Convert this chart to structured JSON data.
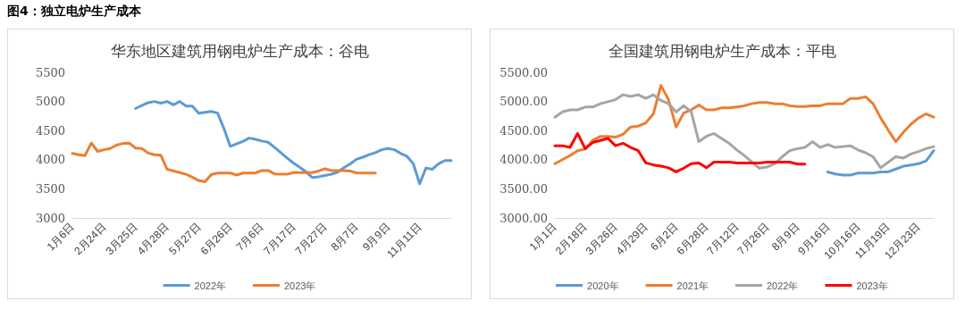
{
  "chart_data": [
    {
      "type": "line",
      "title": "华东地区建筑用钢电炉生产成本：谷电",
      "annotations": [
        "图4：独立电炉生产成本"
      ],
      "categories": [
        "1月6日",
        null,
        null,
        null,
        null,
        "2月24日",
        null,
        null,
        null,
        null,
        "3月25日",
        null,
        null,
        null,
        null,
        "4月28日",
        null,
        null,
        null,
        null,
        "5月27日",
        null,
        null,
        null,
        null,
        "6月26日",
        null,
        null,
        null,
        null,
        "7月6日",
        null,
        null,
        null,
        null,
        "7月17日",
        null,
        null,
        null,
        null,
        "7月27日",
        null,
        null,
        null,
        null,
        "8月7日",
        null,
        null,
        null,
        null,
        "9月9日",
        null,
        null,
        null,
        null,
        "11月11日",
        null,
        null,
        null,
        null,
        null
      ],
      "series": [
        {
          "name": "2022年",
          "color": "#5b9bd5",
          "values": [
            null,
            null,
            null,
            null,
            null,
            null,
            null,
            null,
            null,
            null,
            4879,
            4929,
            4979,
            5000,
            4971,
            5000,
            4943,
            5000,
            4921,
            4921,
            4800,
            4814,
            4829,
            4800,
            4536,
            4229,
            4271,
            4314,
            4371,
            4350,
            4321,
            4300,
            4214,
            4121,
            4029,
            3943,
            3871,
            3793,
            3693,
            3707,
            3729,
            3750,
            3786,
            3864,
            3929,
            4007,
            4043,
            4086,
            4121,
            4171,
            4193,
            4171,
            4107,
            4057,
            3929,
            3586,
            3857,
            3836,
            3929,
            3986,
            3986
          ]
        },
        {
          "name": "2023年",
          "color": "#ed7d31",
          "values": [
            4107,
            4086,
            4071,
            4286,
            4143,
            4171,
            4193,
            4250,
            4279,
            4286,
            4200,
            4193,
            4114,
            4086,
            4079,
            3836,
            3807,
            3779,
            3750,
            3700,
            3643,
            3621,
            3743,
            3771,
            3771,
            3771,
            3736,
            3771,
            3771,
            3771,
            3814,
            3814,
            3757,
            3750,
            3750,
            3779,
            3779,
            3779,
            3779,
            3807,
            3843,
            3814,
            3814,
            3814,
            3807,
            3771,
            3771,
            3771,
            3771,
            null,
            null,
            null,
            null,
            null,
            null,
            null,
            null,
            null,
            null,
            null,
            null
          ]
        }
      ],
      "ylim": [
        3000,
        5500
      ],
      "yticks": [
        3000,
        3500,
        4000,
        4500,
        5000,
        5500
      ],
      "legend": "bottom",
      "marker": "none",
      "line_style": "solid"
    },
    {
      "type": "line",
      "title": "全国建筑用钢电炉生产成本：平电",
      "categories": [
        "1月1日",
        null,
        null,
        null,
        "2月18日",
        null,
        null,
        null,
        "3月26日",
        null,
        null,
        null,
        "4月29日",
        null,
        null,
        null,
        "6月2日",
        null,
        null,
        null,
        "6月28日",
        null,
        null,
        null,
        "7月12日",
        null,
        null,
        null,
        "7月26日",
        null,
        null,
        null,
        "8月9日",
        null,
        null,
        null,
        "9月16日",
        null,
        null,
        null,
        "10月16日",
        null,
        null,
        null,
        "11月19日",
        null,
        null,
        null,
        "12月23日",
        null,
        null
      ],
      "series": [
        {
          "name": "2020年",
          "color": "#5b9bd5",
          "values": [
            null,
            null,
            null,
            null,
            null,
            null,
            null,
            null,
            null,
            null,
            null,
            null,
            null,
            null,
            null,
            null,
            null,
            null,
            null,
            null,
            null,
            null,
            null,
            null,
            null,
            null,
            null,
            null,
            null,
            null,
            null,
            null,
            null,
            null,
            null,
            null,
            3791,
            3756,
            3735,
            3735,
            3770,
            3770,
            3770,
            3791,
            3791,
            3840,
            3889,
            3910,
            3931,
            3980,
            4155
          ]
        },
        {
          "name": "2021年",
          "color": "#ed7d31",
          "values": [
            3931,
            4001,
            4071,
            4155,
            4183,
            4331,
            4401,
            4401,
            4387,
            4436,
            4562,
            4576,
            4632,
            4786,
            5276,
            5031,
            4562,
            4800,
            4856,
            4940,
            4856,
            4856,
            4891,
            4891,
            4905,
            4926,
            4961,
            4982,
            4982,
            4961,
            4961,
            4926,
            4912,
            4912,
            4926,
            4926,
            4961,
            4961,
            4961,
            5052,
            5052,
            5080,
            4961,
            4716,
            4506,
            4310,
            4471,
            4611,
            4716,
            4786,
            4730
          ]
        },
        {
          "name": "2022年",
          "color": "#a5a5a5",
          "values": [
            4730,
            4821,
            4856,
            4856,
            4905,
            4905,
            4961,
            4996,
            5031,
            5115,
            5087,
            5115,
            5052,
            5115,
            5017,
            4961,
            4821,
            4926,
            4821,
            4310,
            4401,
            4450,
            4366,
            4282,
            4169,
            4071,
            3959,
            3854,
            3875,
            3931,
            4050,
            4155,
            4190,
            4211,
            4310,
            4211,
            4261,
            4211,
            4225,
            4240,
            4169,
            4120,
            4050,
            3861,
            3959,
            4050,
            4029,
            4099,
            4141,
            4190,
            4225
          ]
        },
        {
          "name": "2023年",
          "color": "#ff0000",
          "values": [
            4240,
            4240,
            4211,
            4450,
            4190,
            4296,
            4331,
            4366,
            4240,
            4282,
            4211,
            4155,
            3945,
            3910,
            3889,
            3861,
            3791,
            3854,
            3931,
            3945,
            3861,
            3959,
            3959,
            3959,
            3945,
            3945,
            3945,
            3945,
            3959,
            3959,
            3959,
            3959,
            3924,
            3924,
            null,
            null,
            null,
            null,
            null,
            null,
            null,
            null,
            null,
            null,
            null,
            null,
            null,
            null,
            null,
            null,
            null
          ]
        }
      ],
      "ylim": [
        3000,
        5500
      ],
      "yticks": [
        {
          "value": 3000,
          "label": "3000.00"
        },
        {
          "value": 3500,
          "label": "3500.00"
        },
        {
          "value": 4000,
          "label": "4000.00"
        },
        {
          "value": 4500,
          "label": "4500.00"
        },
        {
          "value": 5000,
          "label": "5000.00"
        },
        {
          "value": 5500,
          "label": "5500.00"
        }
      ],
      "legend": "bottom",
      "marker": "none",
      "line_style": "solid"
    }
  ]
}
